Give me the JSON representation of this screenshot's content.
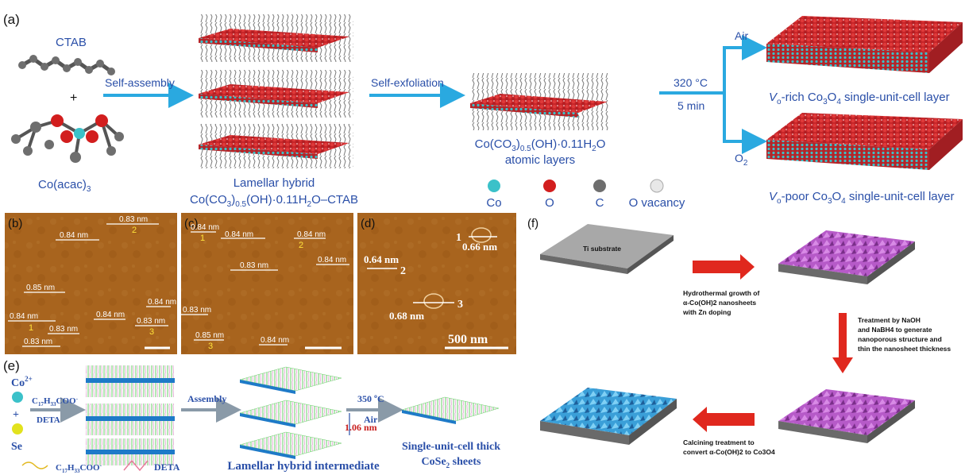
{
  "panel_a": {
    "label": "(a)",
    "ctab": "CTAB",
    "plus": "+",
    "co_acac": "Co(acac)",
    "co_acac_sub": "3",
    "self_assembly": "Self-assembly",
    "lamellar_title": "Lamellar hybrid",
    "lamellar_formula_a": "Co(CO",
    "lamellar_formula_sub1": "3",
    "lamellar_formula_b": ")",
    "lamellar_formula_sub2": "0.5",
    "lamellar_formula_c": "(OH)·0.11H",
    "lamellar_formula_sub3": "2",
    "lamellar_formula_d": "O–CTAB",
    "self_exfoliation": "Self-exfoliation",
    "atomic_formula_a": "Co(CO",
    "atomic_formula_sub1": "3",
    "atomic_formula_b": ")",
    "atomic_formula_sub2": "0.5",
    "atomic_formula_c": "(OH)·0.11H",
    "atomic_formula_sub3": "2",
    "atomic_formula_d": "O",
    "atomic_layers": "atomic layers",
    "temp": "320 °C",
    "time": "5 min",
    "air": "Air",
    "o2": "O",
    "o2_sub": "2",
    "vrich_v": "V",
    "vrich_sub": "o",
    "vrich_rest": "-rich Co",
    "vrich_sub2": "3",
    "vrich_o": "O",
    "vrich_sub3": "4",
    "vrich_tail": " single-unit-cell layer",
    "vpoor_v": "V",
    "vpoor_sub": "o",
    "vpoor_rest": "-poor Co",
    "vpoor_sub2": "3",
    "vpoor_o": "O",
    "vpoor_sub3": "4",
    "vpoor_tail": " single-unit-cell layer",
    "legend": {
      "co": "Co",
      "o": "O",
      "c": "C",
      "vac": "O vacancy"
    }
  },
  "panel_b": {
    "label": "(b)",
    "labels": [
      "0.83 nm",
      "0.84 nm",
      "0.85 nm",
      "0.84 nm",
      "0.84 nm",
      "0.83 nm",
      "0.84 nm",
      "0.83 nm",
      "0.83 nm"
    ],
    "nums": [
      "2",
      "1",
      "3"
    ]
  },
  "panel_c": {
    "label": "(c)",
    "labels": [
      "0.84 nm",
      "0.84 nm",
      "0.84 nm",
      "0.84 nm",
      "0.83 nm",
      "0.83 nm",
      "0.85 nm",
      "0.84 nm"
    ],
    "nums": [
      "1",
      "2",
      "3"
    ]
  },
  "panel_d": {
    "label": "(d)",
    "labels": [
      "0.66 nm",
      "0.64 nm",
      "0.68 nm"
    ],
    "nums": [
      "1",
      "2",
      "3"
    ],
    "scale": "500 nm"
  },
  "panel_e": {
    "label": "(e)",
    "co": "Co",
    "co_sup": "2+",
    "plus": "+",
    "se": "Se",
    "oleate": "C",
    "oleate_sub1": "17",
    "oleate_mid": "H",
    "oleate_sub2": "33",
    "oleate_tail": "COO",
    "oleate_sup": "-",
    "deta": "DETA",
    "assembly": "Assembly",
    "temp": "350 ºC",
    "air": "Air",
    "spacing": "1.06 nm",
    "lamellar": "Lamellar hybrid intermediate",
    "product_1": "Single-unit-cell thick",
    "product_2a": "CoSe",
    "product_2sub": "2",
    "product_2b": " sheets",
    "legend_oleate": "C",
    "legend_oleate_sub1": "17",
    "legend_oleate_mid": "H",
    "legend_oleate_sub2": "33",
    "legend_oleate_tail": "COO",
    "legend_oleate_sup": "-",
    "legend_deta": "DETA"
  },
  "panel_f": {
    "label": "(f)",
    "substrate": "Ti substrate",
    "step1": [
      "Hydrothermal growth of",
      "α-Co(OH)2 nanosheets",
      "with Zn doping"
    ],
    "step2": [
      "Treatment by NaOH",
      "and NaBH4 to generate",
      "nanoporous structure and",
      "thin the nanosheet thickness"
    ],
    "step3": [
      "Calcining treatment to",
      "convert α-Co(OH)2 to Co3O4"
    ]
  },
  "colors": {
    "arrow_blue": "#2aa9e0",
    "text_blue": "#2a4fa8",
    "afm_brown": "#a8641e",
    "red_arrow": "#e0281e",
    "purple": "#b65ac8",
    "cyan_sheet": "#3a9fd8"
  }
}
